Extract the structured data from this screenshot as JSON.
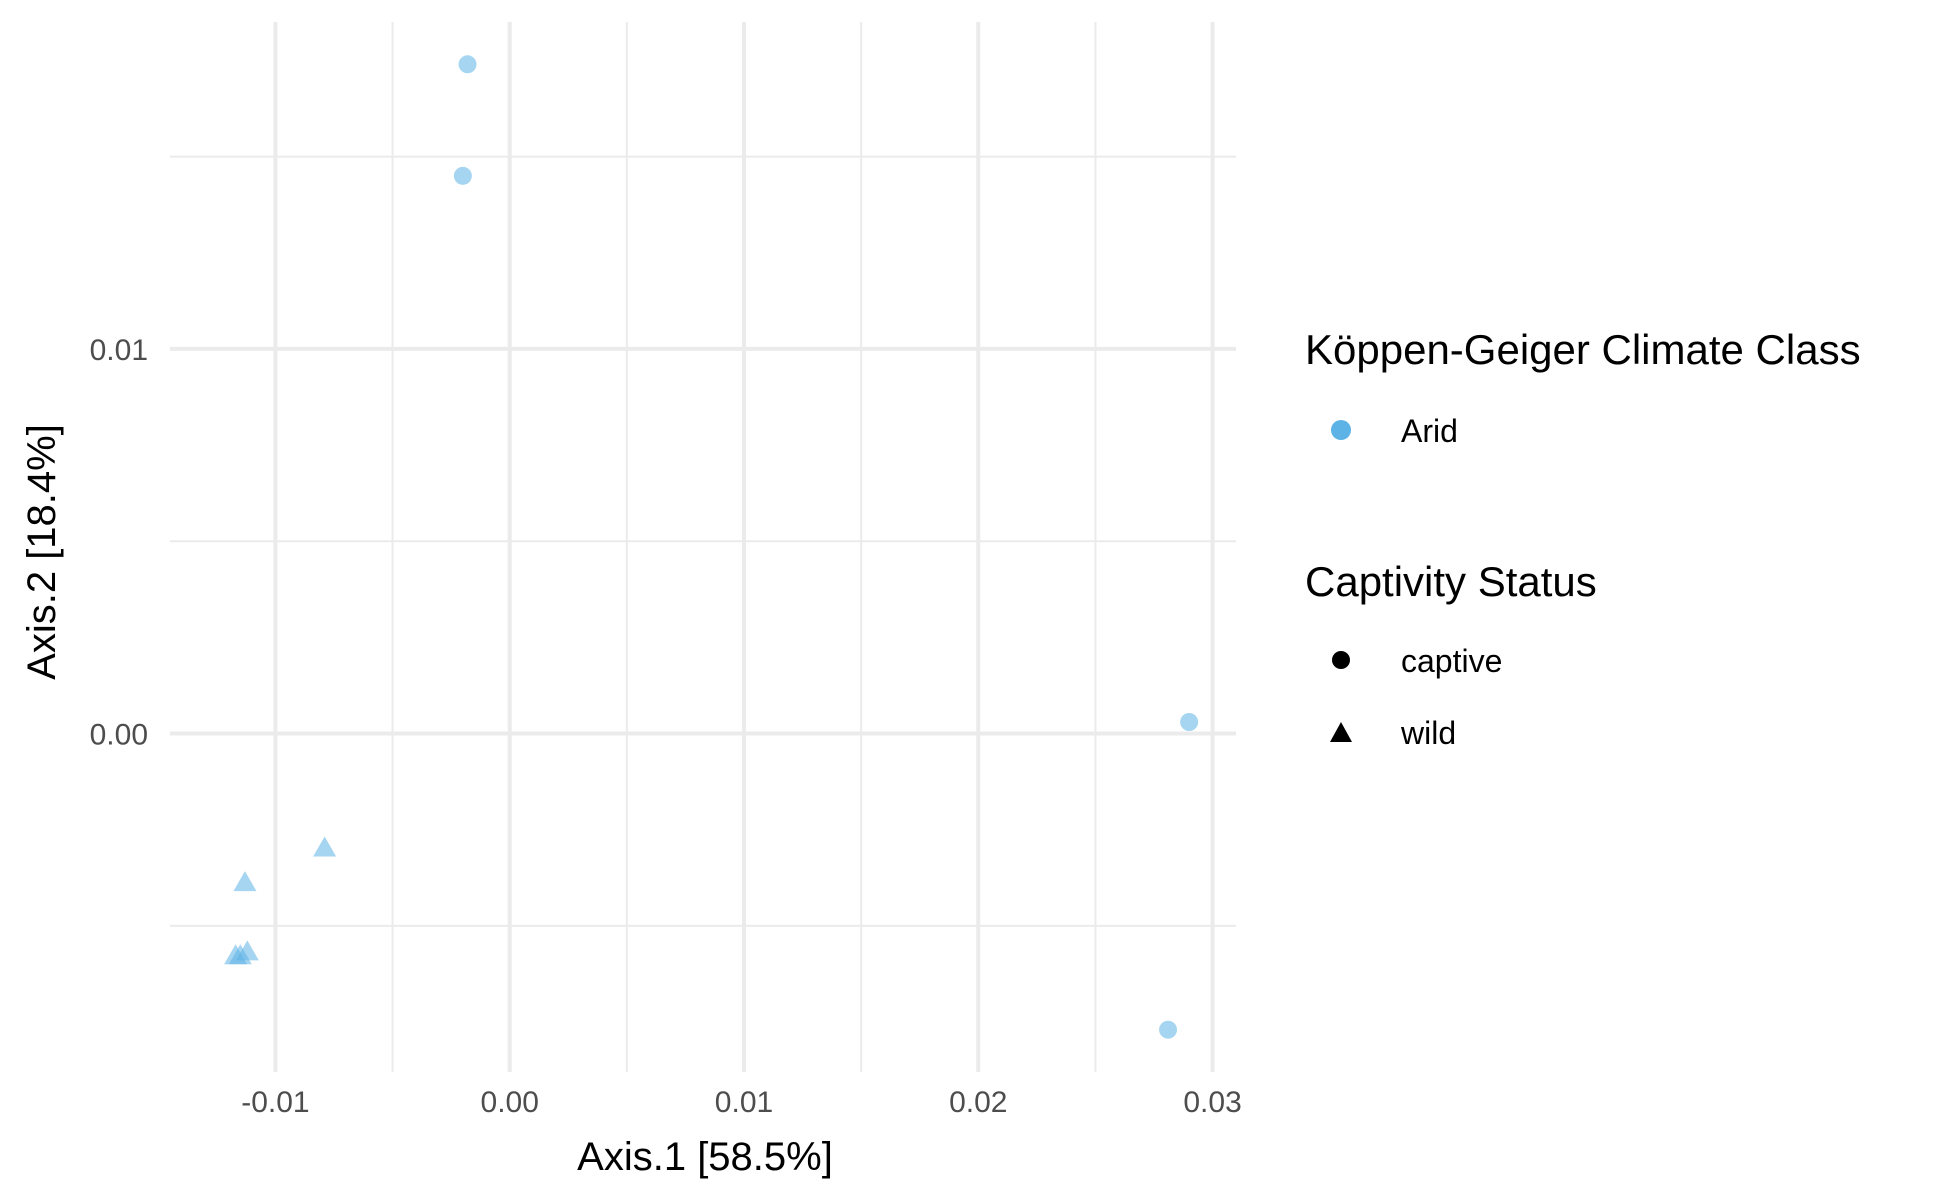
{
  "chart_data": {
    "type": "scatter",
    "title": "",
    "xlabel": "Axis.1   [58.5%]",
    "ylabel": "Axis.2   [18.4%]",
    "xlim": [
      -0.0145,
      0.031
    ],
    "ylim": [
      -0.0088,
      0.0185
    ],
    "x_major_ticks": [
      -0.01,
      0.0,
      0.01,
      0.02,
      0.03
    ],
    "x_tick_labels": [
      "-0.01",
      "0.00",
      "0.01",
      "0.02",
      "0.03"
    ],
    "x_minor_ticks": [
      -0.005,
      0.005,
      0.015,
      0.025
    ],
    "y_major_ticks": [
      0.0,
      0.01
    ],
    "y_tick_labels": [
      "0.00",
      "0.01"
    ],
    "y_minor_ticks": [
      -0.005,
      0.005,
      0.015
    ],
    "grid": true,
    "point_color": "#5DB3E5",
    "point_opacity": 0.55,
    "points": [
      {
        "x": -0.0018,
        "y": 0.0174,
        "shape": "captive"
      },
      {
        "x": -0.002,
        "y": 0.0145,
        "shape": "captive"
      },
      {
        "x": 0.029,
        "y": 0.0003,
        "shape": "captive"
      },
      {
        "x": 0.0281,
        "y": -0.0077,
        "shape": "captive"
      },
      {
        "x": -0.0079,
        "y": -0.003,
        "shape": "wild"
      },
      {
        "x": -0.0113,
        "y": -0.0039,
        "shape": "wild"
      },
      {
        "x": -0.0112,
        "y": -0.0057,
        "shape": "wild"
      },
      {
        "x": -0.0115,
        "y": -0.0058,
        "shape": "wild"
      },
      {
        "x": -0.0117,
        "y": -0.0058,
        "shape": "wild"
      }
    ],
    "legends": {
      "color": {
        "title": "Köppen-Geiger Climate Class",
        "entries": [
          {
            "label": "Arid",
            "color": "#5DB3E5"
          }
        ]
      },
      "shape": {
        "title": "Captivity Status",
        "entries": [
          {
            "label": "captive",
            "symbol": "circle"
          },
          {
            "label": "wild",
            "symbol": "triangle"
          }
        ]
      }
    },
    "legend_position": "right"
  }
}
